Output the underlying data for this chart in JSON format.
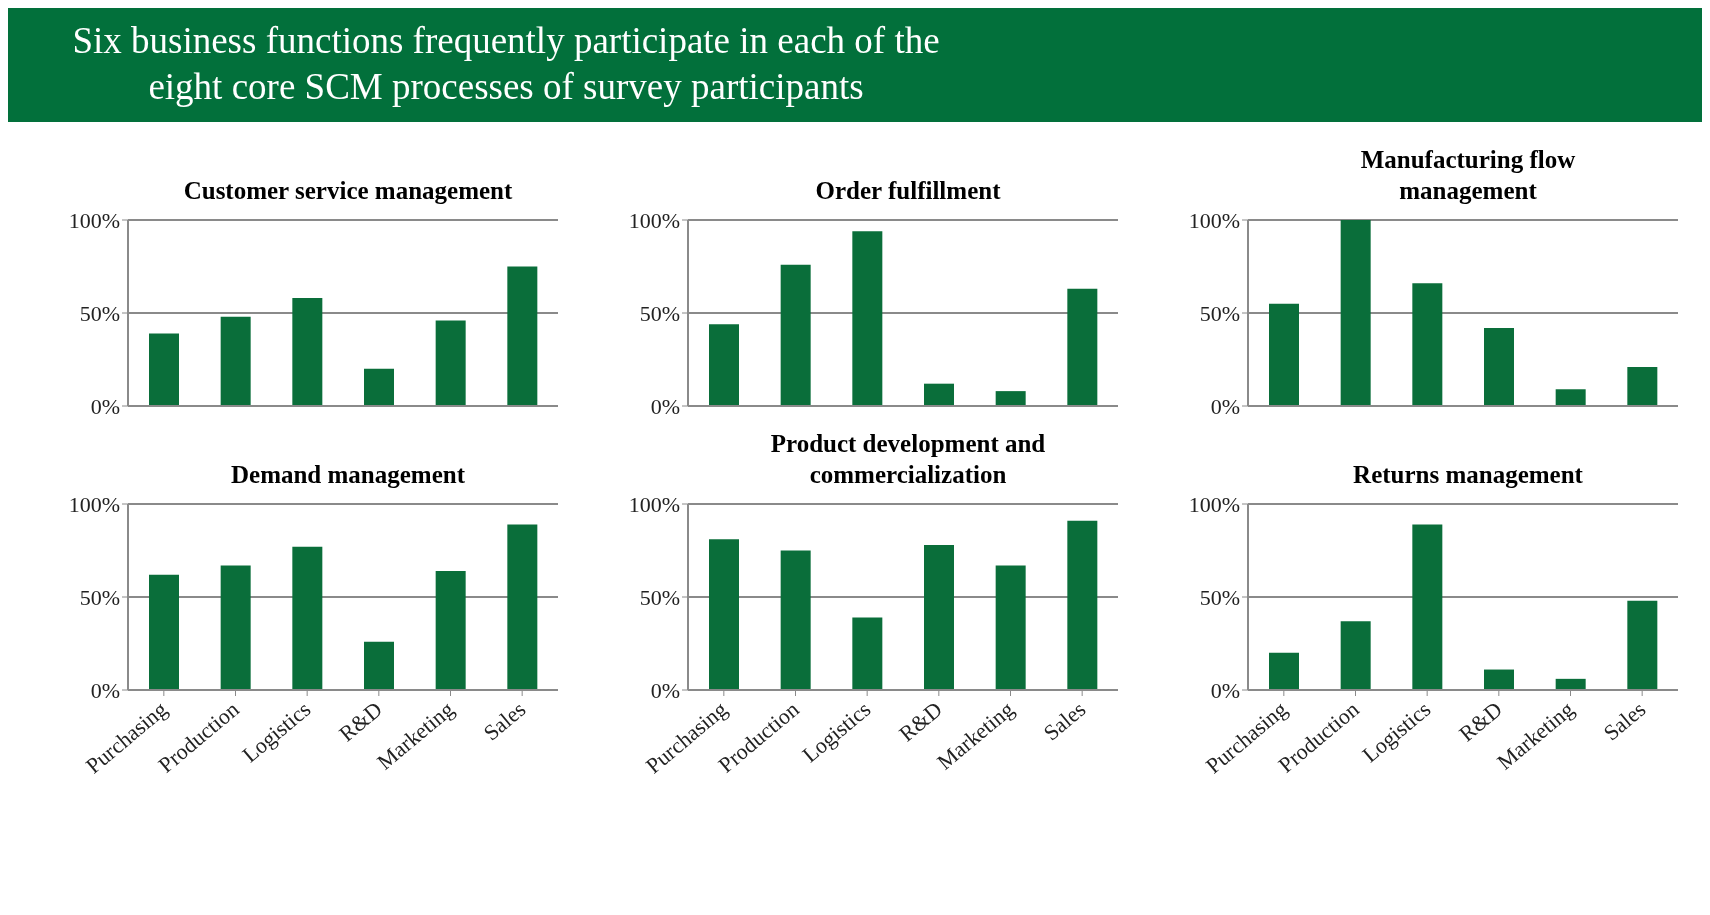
{
  "chart_data": [
    {
      "type": "other",
      "title": "Six business functions frequently participate in each of the eight core SCM processes of survey participants"
    },
    {
      "type": "bar",
      "title": "Customer service management",
      "categories": [
        null,
        null,
        null,
        null,
        null,
        null
      ],
      "values": [
        39,
        48,
        58,
        20,
        46,
        75
      ],
      "color": "#0a6e3a",
      "ylim": [
        0,
        100
      ],
      "yticks": [
        {
          "value": 0,
          "label": "0%"
        },
        {
          "value": 50,
          "label": "50%"
        },
        {
          "value": 100,
          "label": "100%"
        }
      ],
      "grid": "y"
    },
    {
      "type": "bar",
      "title": "Order fulfillment",
      "categories": [
        null,
        null,
        null,
        null,
        null,
        null
      ],
      "values": [
        44,
        76,
        94,
        12,
        8,
        63
      ],
      "color": "#0a6e3a",
      "ylim": [
        0,
        100
      ],
      "yticks": [
        {
          "value": 0,
          "label": "0%"
        },
        {
          "value": 50,
          "label": "50%"
        },
        {
          "value": 100,
          "label": "100%"
        }
      ],
      "grid": "y"
    },
    {
      "type": "bar",
      "title": "Manufacturing flow management",
      "categories": [
        null,
        null,
        null,
        null,
        null,
        null
      ],
      "values": [
        55,
        100,
        66,
        42,
        9,
        21
      ],
      "color": "#0a6e3a",
      "ylim": [
        0,
        100
      ],
      "yticks": [
        {
          "value": 0,
          "label": "0%"
        },
        {
          "value": 50,
          "label": "50%"
        },
        {
          "value": 100,
          "label": "100%"
        }
      ],
      "grid": "y"
    },
    {
      "type": "bar",
      "title": "Demand management",
      "categories": [
        "Purchasing",
        "Production",
        "Logistics",
        "R&D",
        "Marketing",
        "Sales"
      ],
      "values": [
        62,
        67,
        77,
        26,
        64,
        89
      ],
      "color": "#0a6e3a",
      "ylim": [
        0,
        100
      ],
      "yticks": [
        {
          "value": 0,
          "label": "0%"
        },
        {
          "value": 50,
          "label": "50%"
        },
        {
          "value": 100,
          "label": "100%"
        }
      ],
      "grid": "y"
    },
    {
      "type": "bar",
      "title": "Product development and commercialization",
      "categories": [
        "Purchasing",
        "Production",
        "Logistics",
        "R&D",
        "Marketing",
        "Sales"
      ],
      "values": [
        81,
        75,
        39,
        78,
        67,
        91
      ],
      "color": "#0a6e3a",
      "ylim": [
        0,
        100
      ],
      "yticks": [
        {
          "value": 0,
          "label": "0%"
        },
        {
          "value": 50,
          "label": "50%"
        },
        {
          "value": 100,
          "label": "100%"
        }
      ],
      "grid": "y"
    },
    {
      "type": "bar",
      "title": "Returns management",
      "categories": [
        "Purchasing",
        "Production",
        "Logistics",
        "R&D",
        "Marketing",
        "Sales"
      ],
      "values": [
        20,
        37,
        89,
        11,
        6,
        48
      ],
      "color": "#0a6e3a",
      "ylim": [
        0,
        100
      ],
      "yticks": [
        {
          "value": 0,
          "label": "0%"
        },
        {
          "value": 50,
          "label": "50%"
        },
        {
          "value": 100,
          "label": "100%"
        }
      ],
      "grid": "y"
    }
  ]
}
